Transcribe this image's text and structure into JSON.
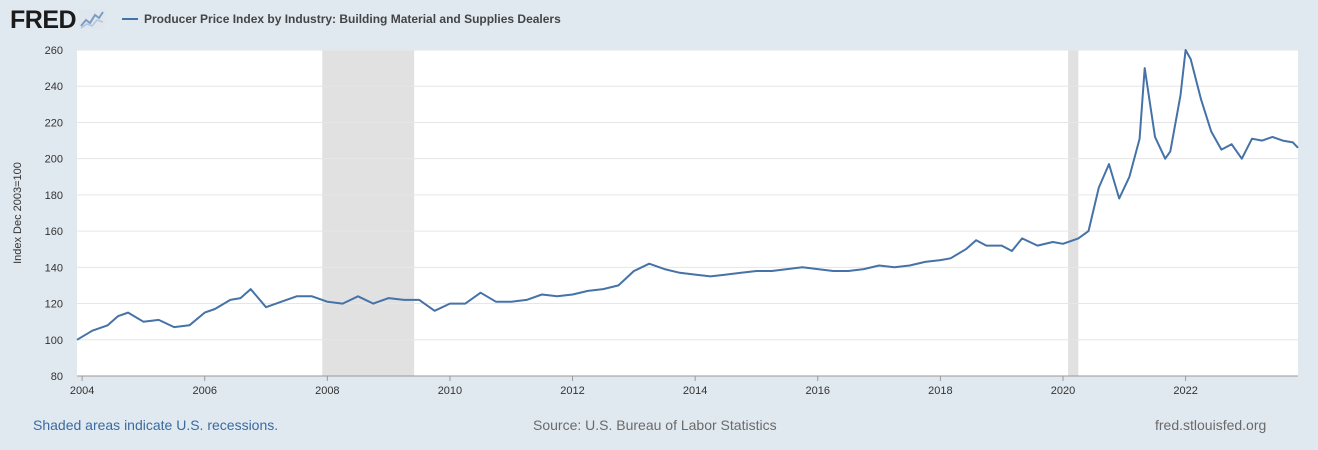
{
  "header": {
    "logo_text": "FRED",
    "logo_icon": "line-chart-icon",
    "legend_label": "Producer Price Index by Industry: Building Material and Supplies Dealers"
  },
  "footer": {
    "recession_note": "Shaded areas indicate U.S. recessions.",
    "source": "Source: U.S. Bureau of Labor Statistics",
    "site": "fred.stlouisfed.org"
  },
  "colors": {
    "background": "#e1e9f0",
    "plot_background": "#ffffff",
    "series": "#4572a7",
    "recession_shade": "#e1e1e1",
    "grid": "#e6e6e6"
  },
  "chart_data": {
    "type": "line",
    "title": "",
    "xlabel": "",
    "ylabel": "Index Dec 2003=100",
    "ylim": [
      80,
      260
    ],
    "yticks": [
      80,
      100,
      120,
      140,
      160,
      180,
      200,
      220,
      240,
      260
    ],
    "xlim": [
      "2003-12",
      "2023-11"
    ],
    "xticks": [
      "2004",
      "2006",
      "2008",
      "2010",
      "2012",
      "2014",
      "2016",
      "2018",
      "2020",
      "2022"
    ],
    "grid": "horizontal",
    "legend": "top-left",
    "recessions": [
      {
        "start": "2007-12",
        "end": "2009-06"
      },
      {
        "start": "2020-02",
        "end": "2020-04"
      }
    ],
    "series": [
      {
        "name": "Producer Price Index by Industry: Building Material and Supplies Dealers",
        "x": [
          "2003-12",
          "2004-03",
          "2004-06",
          "2004-08",
          "2004-10",
          "2005-01",
          "2005-04",
          "2005-07",
          "2005-10",
          "2006-01",
          "2006-03",
          "2006-06",
          "2006-08",
          "2006-10",
          "2007-01",
          "2007-04",
          "2007-07",
          "2007-10",
          "2008-01",
          "2008-04",
          "2008-07",
          "2008-10",
          "2009-01",
          "2009-04",
          "2009-07",
          "2009-10",
          "2010-01",
          "2010-04",
          "2010-07",
          "2010-10",
          "2011-01",
          "2011-04",
          "2011-07",
          "2011-10",
          "2012-01",
          "2012-04",
          "2012-07",
          "2012-10",
          "2013-01",
          "2013-04",
          "2013-07",
          "2013-10",
          "2014-01",
          "2014-04",
          "2014-07",
          "2014-10",
          "2015-01",
          "2015-04",
          "2015-07",
          "2015-10",
          "2016-01",
          "2016-04",
          "2016-07",
          "2016-10",
          "2017-01",
          "2017-04",
          "2017-07",
          "2017-10",
          "2018-01",
          "2018-03",
          "2018-06",
          "2018-08",
          "2018-10",
          "2019-01",
          "2019-03",
          "2019-05",
          "2019-08",
          "2019-11",
          "2020-01",
          "2020-04",
          "2020-06",
          "2020-08",
          "2020-10",
          "2020-12",
          "2021-02",
          "2021-04",
          "2021-05",
          "2021-07",
          "2021-09",
          "2021-10",
          "2021-12",
          "2022-01",
          "2022-02",
          "2022-04",
          "2022-06",
          "2022-08",
          "2022-10",
          "2022-12",
          "2023-02",
          "2023-04",
          "2023-06",
          "2023-08",
          "2023-10",
          "2023-11"
        ],
        "values": [
          100,
          105,
          108,
          113,
          115,
          110,
          111,
          107,
          108,
          115,
          117,
          122,
          123,
          128,
          118,
          121,
          124,
          124,
          121,
          120,
          124,
          120,
          123,
          122,
          122,
          116,
          120,
          120,
          126,
          121,
          121,
          122,
          125,
          124,
          125,
          127,
          128,
          130,
          138,
          142,
          139,
          137,
          136,
          135,
          136,
          137,
          138,
          138,
          139,
          140,
          139,
          138,
          138,
          139,
          141,
          140,
          141,
          143,
          144,
          145,
          150,
          155,
          152,
          152,
          149,
          156,
          152,
          154,
          153,
          156,
          160,
          184,
          197,
          178,
          190,
          211,
          250,
          212,
          200,
          204,
          235,
          260,
          255,
          233,
          215,
          205,
          208,
          200,
          211,
          210,
          212,
          210,
          209,
          206
        ]
      }
    ]
  }
}
